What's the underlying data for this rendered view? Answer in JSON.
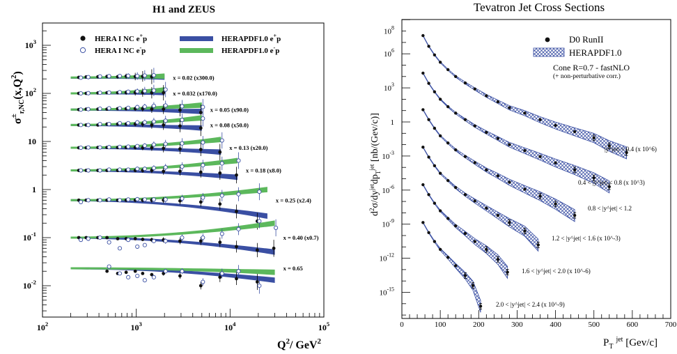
{
  "left": {
    "title": "H1 and ZEUS",
    "ylabel_main": "σ",
    "ylabel_sup": "±",
    "ylabel_sub": "r,NC",
    "ylabel_tail": "(x,Q",
    "ylabel_tail_sup": "2",
    "ylabel_end": ")",
    "xlabel_main": "Q",
    "xlabel_sup": "2",
    "xlabel_tail": "/ GeV",
    "xlabel_sup2": "2",
    "legend": [
      {
        "text": "HERA I NC e",
        "sup": "+",
        "end": "p",
        "marker": "filled"
      },
      {
        "text": "HERA I NC e",
        "sup": "-",
        "end": "p",
        "marker": "open"
      },
      {
        "text": "HERAPDF1.0   e",
        "sup": "+",
        "end": "p",
        "color": "#3a4fa3"
      },
      {
        "text": "HERAPDF1.0   e",
        "sup": "-",
        "end": "p",
        "color": "#5cb85c"
      }
    ],
    "x_ticks": [
      {
        "base": "10",
        "exp": "2"
      },
      {
        "base": "10",
        "exp": "3"
      },
      {
        "base": "10",
        "exp": "4"
      },
      {
        "base": "10",
        "exp": "5"
      }
    ],
    "y_ticks": [
      {
        "base": "10",
        "exp": "-2"
      },
      {
        "base": "10",
        "exp": "-1"
      },
      {
        "base": "1",
        "exp": ""
      },
      {
        "base": "10",
        "exp": ""
      },
      {
        "base": "10",
        "exp": "2"
      },
      {
        "base": "10",
        "exp": "3"
      }
    ]
  },
  "right": {
    "title": "Tevatron Jet Cross Sections",
    "ylabel": "d²σ/dy^jet dp_T^jet [nb/(Gev/c)]",
    "xlabel_main": "P",
    "xlabel_sub": "T",
    "xlabel_sup": "jet",
    "xlabel_tail": " [Gev/c]",
    "legend_data": "D0 RunII",
    "legend_band": "HERAPDF1.0",
    "note1": "Cone R=0.7  - fastNLO",
    "note2": "(+ non-perturbative corr.)",
    "x_ticks": [
      "0",
      "100",
      "200",
      "300",
      "400",
      "500",
      "600",
      "700"
    ],
    "y_ticks": [
      {
        "base": "10",
        "exp": "8"
      },
      {
        "base": "10",
        "exp": "6"
      },
      {
        "base": "10",
        "exp": "3"
      },
      {
        "base": "1",
        "exp": ""
      },
      {
        "base": "10",
        "exp": "-3"
      },
      {
        "base": "10",
        "exp": "-6"
      },
      {
        "base": "10",
        "exp": "-9"
      },
      {
        "base": "10",
        "exp": "-12"
      },
      {
        "base": "10",
        "exp": "-15"
      }
    ]
  },
  "chart_data": [
    {
      "type": "scatter",
      "title": "H1 and ZEUS",
      "xlabel": "Q²/ GeV²",
      "ylabel": "σ±r,NC(x,Q²)",
      "xscale": "log",
      "yscale": "log",
      "xlim": [
        100,
        100000
      ],
      "ylim": [
        0.005,
        2000
      ],
      "series": [
        {
          "label": "x = 0.02  (x300.0)",
          "q2": [
            250,
            300,
            400,
            500,
            650,
            800,
            1000,
            1200,
            1500
          ],
          "ep_plus": [
            215,
            220,
            222,
            225,
            222,
            228,
            224,
            226,
            222
          ],
          "ep_minus": [
            212,
            218,
            225,
            228,
            230,
            232,
            230,
            235,
            238
          ],
          "fit_plus": [
            [
              200,
              212
            ],
            [
              2000,
              218
            ]
          ],
          "fit_minus": [
            [
              200,
              214
            ],
            [
              2000,
              228
            ]
          ]
        },
        {
          "label": "x = 0.032  (x170.0)",
          "q2": [
            250,
            300,
            400,
            500,
            650,
            800,
            1000,
            1200,
            1500,
            2000
          ],
          "ep_plus": [
            100,
            100,
            102,
            103,
            103,
            104,
            104,
            104,
            103,
            103
          ],
          "ep_minus": [
            100,
            101,
            103,
            104,
            106,
            108,
            110,
            112,
            115,
            120
          ],
          "fit_plus": [
            [
              200,
              100
            ],
            [
              2000,
              104
            ]
          ],
          "fit_minus": [
            [
              200,
              100
            ],
            [
              2000,
              118
            ]
          ]
        },
        {
          "label": "x = 0.05  (x90.0)",
          "q2": [
            250,
            300,
            400,
            500,
            650,
            800,
            1000,
            1200,
            1500,
            2000,
            3000,
            5000
          ],
          "ep_plus": [
            46,
            47,
            47,
            47,
            48,
            48,
            48,
            48,
            47,
            47,
            45,
            40
          ],
          "ep_minus": [
            46,
            47,
            48,
            49,
            49,
            50,
            52,
            53,
            55,
            56,
            54,
            52
          ],
          "fit_plus": [
            [
              200,
              46
            ],
            [
              5000,
              42
            ]
          ],
          "fit_minus": [
            [
              200,
              46
            ],
            [
              5000,
              57
            ]
          ]
        },
        {
          "label": "x = 0.08  (x50.0)",
          "q2": [
            250,
            300,
            400,
            500,
            650,
            800,
            1000,
            1200,
            1500,
            2000,
            3000,
            5000
          ],
          "ep_plus": [
            22,
            22,
            22,
            23,
            23,
            23,
            23,
            23,
            22,
            22,
            21,
            19
          ],
          "ep_minus": [
            22,
            22,
            23,
            23,
            24,
            24,
            25,
            25,
            26,
            27,
            28,
            30
          ],
          "fit_plus": [
            [
              200,
              22
            ],
            [
              5000,
              19
            ]
          ],
          "fit_minus": [
            [
              200,
              22
            ],
            [
              5000,
              31
            ]
          ]
        },
        {
          "label": "x = 0.13  (x20.0)",
          "q2": [
            250,
            300,
            400,
            500,
            650,
            800,
            1000,
            1200,
            1500,
            2000,
            3000,
            5000,
            8000
          ],
          "ep_plus": [
            7.4,
            7.4,
            7.5,
            7.5,
            7.5,
            7.5,
            7.5,
            7.4,
            7.4,
            7.2,
            7.0,
            6.8,
            6.0
          ],
          "ep_minus": [
            7.4,
            7.5,
            7.5,
            7.6,
            7.7,
            7.8,
            8.0,
            8.2,
            8.6,
            8.9,
            9.1,
            9.5,
            10.5
          ],
          "fit_plus": [
            [
              200,
              7.4
            ],
            [
              8000,
              6.0
            ]
          ],
          "fit_minus": [
            [
              200,
              7.4
            ],
            [
              8000,
              11.0
            ]
          ]
        },
        {
          "label": "x = 0.18  (x8.0)",
          "q2": [
            250,
            300,
            400,
            500,
            650,
            800,
            1000,
            1200,
            1500,
            2000,
            3000,
            5000,
            8000,
            12000
          ],
          "ep_plus": [
            2.5,
            2.5,
            2.5,
            2.5,
            2.5,
            2.5,
            2.5,
            2.5,
            2.5,
            2.4,
            2.4,
            2.3,
            2.2,
            2.0
          ],
          "ep_minus": [
            2.5,
            2.5,
            2.5,
            2.6,
            2.6,
            2.6,
            2.7,
            2.7,
            2.8,
            2.9,
            3.0,
            3.2,
            3.5,
            4.0
          ],
          "fit_plus": [
            [
              200,
              2.5
            ],
            [
              12000,
              1.8
            ]
          ],
          "fit_minus": [
            [
              200,
              2.5
            ],
            [
              12000,
              4.0
            ]
          ]
        },
        {
          "label": "x = 0.25  (x2.4)",
          "q2": [
            250,
            300,
            400,
            500,
            650,
            800,
            1000,
            1200,
            1500,
            2000,
            3000,
            5000,
            8000,
            12000,
            20000
          ],
          "ep_plus": [
            0.6,
            0.6,
            0.6,
            0.6,
            0.6,
            0.6,
            0.6,
            0.6,
            0.6,
            0.6,
            0.58,
            0.55,
            0.5,
            0.35,
            0.22
          ],
          "ep_minus": [
            0.55,
            0.6,
            0.6,
            0.62,
            0.6,
            0.62,
            0.63,
            0.62,
            0.62,
            0.62,
            0.65,
            0.68,
            0.75,
            0.8,
            0.9
          ],
          "fit_plus": [
            [
              200,
              0.6
            ],
            [
              25000,
              0.28
            ]
          ],
          "fit_minus": [
            [
              200,
              0.6
            ],
            [
              25000,
              1.0
            ]
          ]
        },
        {
          "label": "x = 0.40  (x0.7)",
          "q2": [
            250,
            300,
            400,
            500,
            650,
            800,
            1000,
            1200,
            1500,
            2000,
            3000,
            5000,
            8000,
            12000,
            20000,
            30000
          ],
          "ep_plus": [
            0.1,
            0.1,
            0.1,
            0.1,
            0.095,
            0.095,
            0.095,
            0.092,
            0.09,
            0.09,
            0.085,
            0.085,
            0.08,
            0.065,
            0.055,
            0.06
          ],
          "ep_minus": [
            0.09,
            0.095,
            0.1,
            0.08,
            0.06,
            0.09,
            0.065,
            0.07,
            0.085,
            0.085,
            0.1,
            0.1,
            0.12,
            0.15,
            0.22,
            0.16
          ],
          "fit_plus": [
            [
              200,
              0.1
            ],
            [
              30000,
              0.05
            ]
          ],
          "fit_minus": [
            [
              200,
              0.1
            ],
            [
              30000,
              0.2
            ]
          ]
        },
        {
          "label": "x = 0.65",
          "q2": [
            500,
            650,
            800,
            1000,
            1200,
            1500,
            2000,
            3000,
            5000,
            8000,
            12000,
            20000
          ],
          "ep_plus": [
            0.02,
            0.018,
            0.019,
            0.02,
            0.018,
            0.017,
            0.018,
            0.016,
            0.01,
            0.015,
            0.014,
            0.012
          ],
          "ep_minus": [
            0.025,
            0.018,
            0.015,
            0.016,
            0.013,
            0.015,
            0.02,
            0.02,
            0.012,
            0.018,
            0.02,
            0.01
          ],
          "fit_plus": [
            [
              200,
              0.023
            ],
            [
              30000,
              0.013
            ]
          ],
          "fit_minus": [
            [
              200,
              0.023
            ],
            [
              30000,
              0.019
            ]
          ]
        }
      ]
    },
    {
      "type": "scatter",
      "title": "Tevatron Jet Cross Sections",
      "xlabel": "P_T jet [Gev/c]",
      "ylabel": "d²σ/dy^jet dp_T^jet [nb/(Gev/c)]",
      "yscale": "log",
      "xlim": [
        0,
        700
      ],
      "ylim": [
        1e-17,
        1000000000.0
      ],
      "series": [
        {
          "label": "|y^jet| < 0.4 (x 10^6)",
          "pt": [
            55,
            70,
            85,
            100,
            120,
            140,
            165,
            190,
            220,
            250,
            280,
            320,
            360,
            400,
            450,
            500,
            540,
            585
          ],
          "y": [
            40000000.0,
            4600000.0,
            800000.0,
            180000.0,
            40000.0,
            10000.0,
            2700.0,
            800.0,
            200.0,
            60,
            18,
            6,
            1.6,
            0.5,
            0.14,
            0.04,
            0.008,
            0.002
          ],
          "band_end": 590
        },
        {
          "label": "0.4 < |y^jet| < 0.8 (x 10^3)",
          "pt": [
            55,
            70,
            85,
            100,
            120,
            140,
            165,
            190,
            220,
            250,
            280,
            320,
            360,
            400,
            450,
            500,
            540
          ],
          "y": [
            20000.0,
            2500.0,
            450.0,
            100.0,
            22,
            6,
            1.6,
            0.45,
            0.12,
            0.035,
            0.01,
            0.003,
            0.0009,
            0.00025,
            6e-05,
            1.2e-05,
            2e-06
          ],
          "band_end": 545
        },
        {
          "label": "0.8 < |y^jet| < 1.2",
          "pt": [
            55,
            70,
            85,
            100,
            120,
            140,
            165,
            190,
            220,
            250,
            280,
            320,
            360,
            400,
            450
          ],
          "y": [
            12,
            1.6,
            0.28,
            0.06,
            0.014,
            0.0035,
            0.0009,
            0.00026,
            6e-05,
            1.8e-05,
            5e-06,
            1.2e-06,
            3e-07,
            6e-08,
            6e-09
          ],
          "band_end": 450
        },
        {
          "label": "1.2 < |y^jet| < 1.6 (x 10^-3)",
          "pt": [
            55,
            70,
            85,
            100,
            120,
            140,
            165,
            190,
            220,
            250,
            280,
            320,
            355
          ],
          "y": [
            0.006,
            0.0008,
            0.00014,
            3e-05,
            7e-06,
            1.7e-06,
            4e-07,
            1.1e-07,
            2.6e-08,
            6e-09,
            1.4e-09,
            2.5e-10,
            1.5e-11
          ],
          "band_end": 355
        },
        {
          "label": "1.6 < |y^jet| < 2.0 (x 10^-6)",
          "pt": [
            55,
            70,
            85,
            100,
            120,
            140,
            165,
            190,
            220,
            250,
            275
          ],
          "y": [
            3e-06,
            4e-07,
            7e-08,
            1.5e-08,
            3.2e-09,
            7e-10,
            1.5e-10,
            3e-11,
            6e-12,
            8e-13,
            6e-14
          ],
          "band_end": 280
        },
        {
          "label": "2.0 < |y^jet| < 2.4 (x 10^-9)",
          "pt": [
            55,
            70,
            85,
            100,
            120,
            140,
            165,
            185,
            205
          ],
          "y": [
            1.4e-09,
            1.8e-10,
            3e-11,
            6e-12,
            1.2e-12,
            2.2e-13,
            3e-14,
            4e-15,
            6e-17
          ],
          "band_end": 210
        }
      ]
    }
  ]
}
